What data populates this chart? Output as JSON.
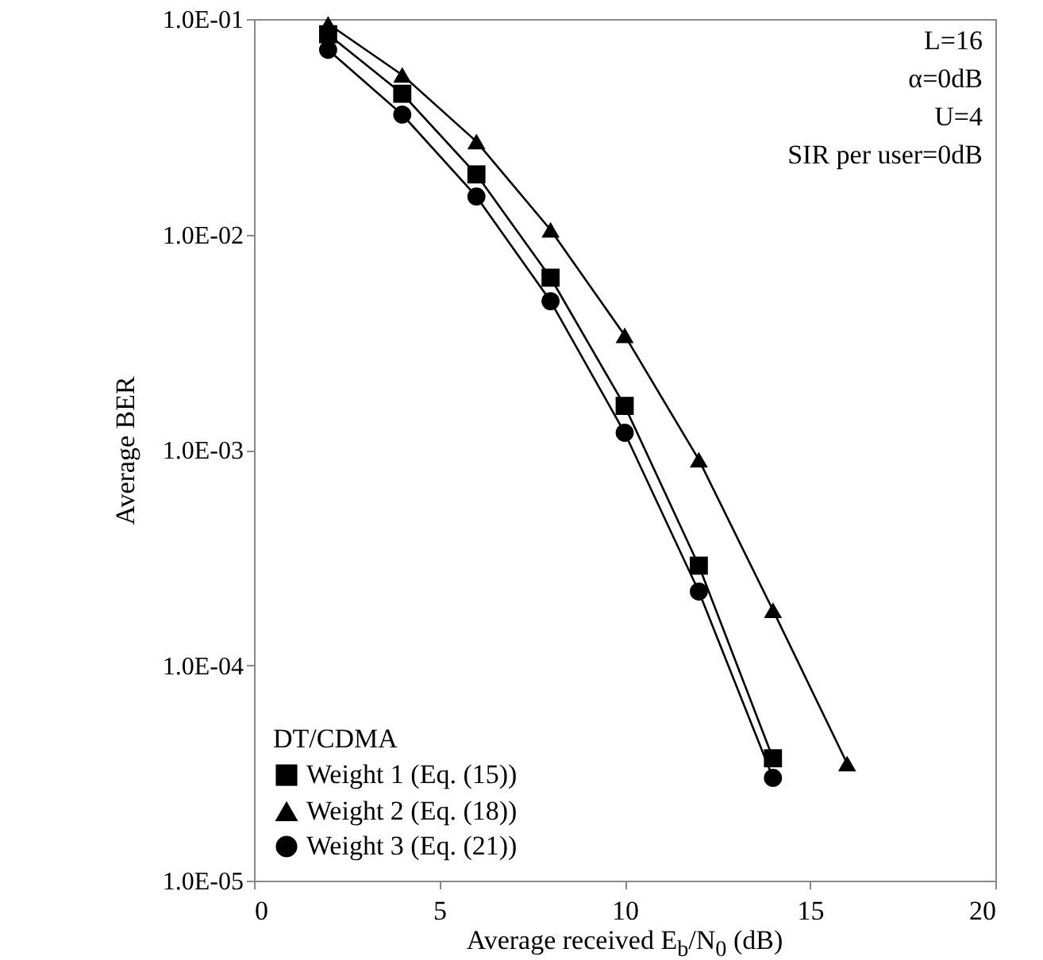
{
  "chart_data": {
    "type": "line",
    "xlabel": "Average received E$_{b}$/N$_{0}$ (dB)",
    "ylabel": "Average BER",
    "legend_title": "DT/CDMA",
    "legend": "bottom left",
    "log": "y",
    "grid": false,
    "x": [
      2,
      4,
      6,
      8,
      10,
      12,
      14,
      16
    ],
    "xlim": [
      0,
      20
    ],
    "xticks": [
      0,
      5,
      10,
      15,
      20
    ],
    "ylim": [
      1e-05,
      0.1
    ],
    "yticks": [
      {
        "value": 0.1,
        "label": "1.0E-01"
      },
      {
        "value": 0.01,
        "label": "1.0E-02"
      },
      {
        "value": 0.001,
        "label": "1.0E-03"
      },
      {
        "value": 0.0001,
        "label": "1.0E-04"
      },
      {
        "value": 1e-05,
        "label": "1.0E-05"
      }
    ],
    "annotations": [
      "L=16",
      "α=0dB",
      "U=4",
      "SIR per user=0dB"
    ],
    "series": [
      {
        "name": "Weight 1 (Eq. (15))",
        "color": "#000000",
        "marker": "square",
        "values": [
          0.085,
          0.045,
          0.019,
          0.0063,
          0.0016,
          0.00029,
          3.7e-05,
          null
        ]
      },
      {
        "name": "Weight 2 (Eq. (18))",
        "color": "#000000",
        "marker": "triangle",
        "values": [
          0.095,
          0.055,
          0.027,
          0.0105,
          0.0034,
          0.0009,
          0.00018,
          3.5e-05
        ]
      },
      {
        "name": "Weight 3 (Eq. (21))",
        "color": "#000000",
        "marker": "circle",
        "values": [
          0.072,
          0.036,
          0.015,
          0.0049,
          0.0012,
          0.00022,
          3e-05,
          null
        ]
      }
    ]
  }
}
